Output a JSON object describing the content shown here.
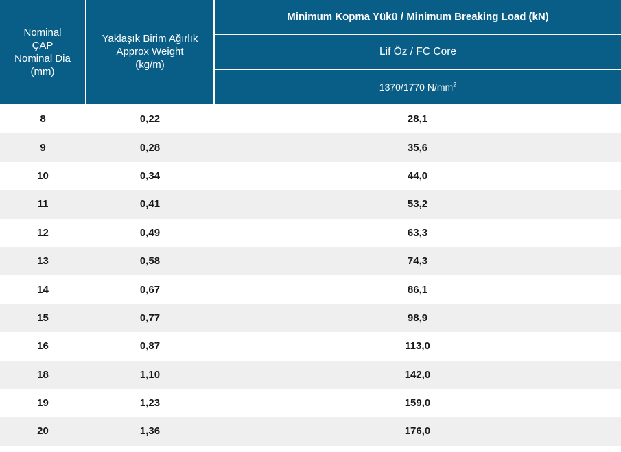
{
  "header": {
    "col1": [
      "Nominal",
      "ÇAP",
      "Nominal Dia",
      "(mm)"
    ],
    "col2": [
      "Yaklaşık Birim Ağırlık",
      "Approx Weight",
      "(kg/m)"
    ],
    "group_title": "Minimum Kopma Yükü / Minimum Breaking Load (kN)",
    "core": "Lif Öz / FC Core",
    "grade": "1370/1770 N/mm",
    "grade_sup": "2"
  },
  "rows": [
    {
      "dia": "8",
      "weight": "0,22",
      "load": "28,1"
    },
    {
      "dia": "9",
      "weight": "0,28",
      "load": "35,6"
    },
    {
      "dia": "10",
      "weight": "0,34",
      "load": "44,0"
    },
    {
      "dia": "11",
      "weight": "0,41",
      "load": "53,2"
    },
    {
      "dia": "12",
      "weight": "0,49",
      "load": "63,3"
    },
    {
      "dia": "13",
      "weight": "0,58",
      "load": "74,3"
    },
    {
      "dia": "14",
      "weight": "0,67",
      "load": "86,1"
    },
    {
      "dia": "15",
      "weight": "0,77",
      "load": "98,9"
    },
    {
      "dia": "16",
      "weight": "0,87",
      "load": "113,0"
    },
    {
      "dia": "18",
      "weight": "1,10",
      "load": "142,0"
    },
    {
      "dia": "19",
      "weight": "1,23",
      "load": "159,0"
    },
    {
      "dia": "20",
      "weight": "1,36",
      "load": "176,0"
    }
  ],
  "colors": {
    "header_bg": "#085e86",
    "stripe": "#efefef"
  }
}
